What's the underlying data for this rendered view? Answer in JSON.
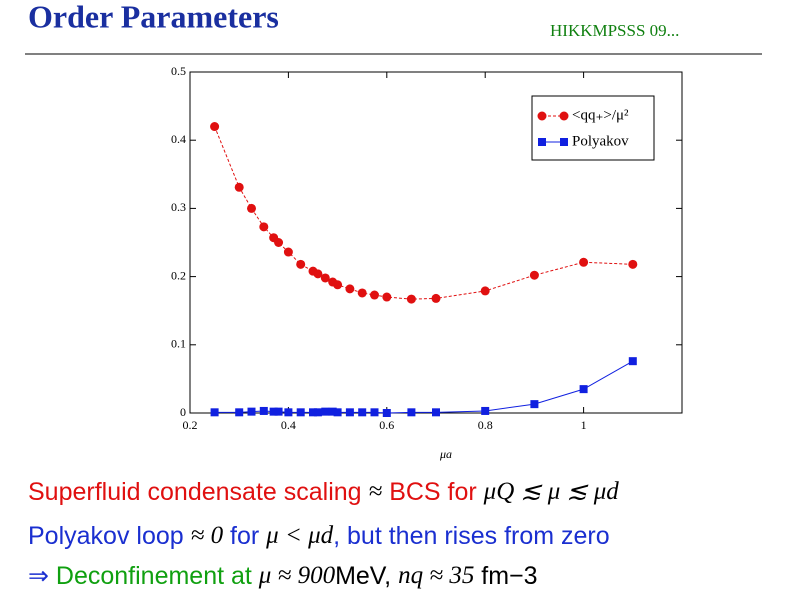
{
  "title": "Order Parameters",
  "citation": "HIKKMPSSS 09...",
  "bullets": [
    [
      "Superfluid condensate scaling ",
      "≈",
      " BCS for ",
      "μQ ≲ μ ≲ μd"
    ],
    [
      "Polyakov loop ",
      "≈ 0",
      " for ",
      "μ < μd",
      ", but then rises from zero"
    ],
    [
      "⇒",
      " Deconfinement at ",
      "μ ≈ 900",
      "MeV, ",
      "nq ≈ 35",
      " fm−3"
    ]
  ],
  "chart_data": {
    "type": "line",
    "x_label": "μa",
    "x": [
      0.25,
      0.3,
      0.325,
      0.35,
      0.37,
      0.38,
      0.4,
      0.425,
      0.45,
      0.46,
      0.475,
      0.49,
      0.5,
      0.525,
      0.55,
      0.575,
      0.6,
      0.65,
      0.7,
      0.8,
      0.9,
      1.0,
      1.1
    ],
    "series": [
      {
        "name": "<qq₊>/μ²",
        "color": "#e01010",
        "marker": "circle",
        "values": [
          0.42,
          0.331,
          0.3,
          0.273,
          0.257,
          0.25,
          0.236,
          0.218,
          0.208,
          0.204,
          0.198,
          0.192,
          0.188,
          0.182,
          0.176,
          0.173,
          0.17,
          0.167,
          0.168,
          0.179,
          0.202,
          0.221,
          0.218
        ]
      },
      {
        "name": "Polyakov",
        "color": "#1020e0",
        "marker": "square",
        "values": [
          0.001,
          0.001,
          0.002,
          0.003,
          0.002,
          0.002,
          0.001,
          0.001,
          0.001,
          0.001,
          0.002,
          0.002,
          0.001,
          0.001,
          0.001,
          0.001,
          0,
          0.001,
          0.001,
          0.003,
          0.013,
          0.035,
          0.076
        ]
      }
    ],
    "xlim": [
      0.2,
      1.2
    ],
    "xticks": [
      0.2,
      0.4,
      0.6,
      0.8,
      1
    ],
    "ylim": [
      0,
      0.5
    ],
    "yticks": [
      0,
      0.1,
      0.2,
      0.3,
      0.4,
      0.5
    ],
    "legend": "upper right"
  }
}
